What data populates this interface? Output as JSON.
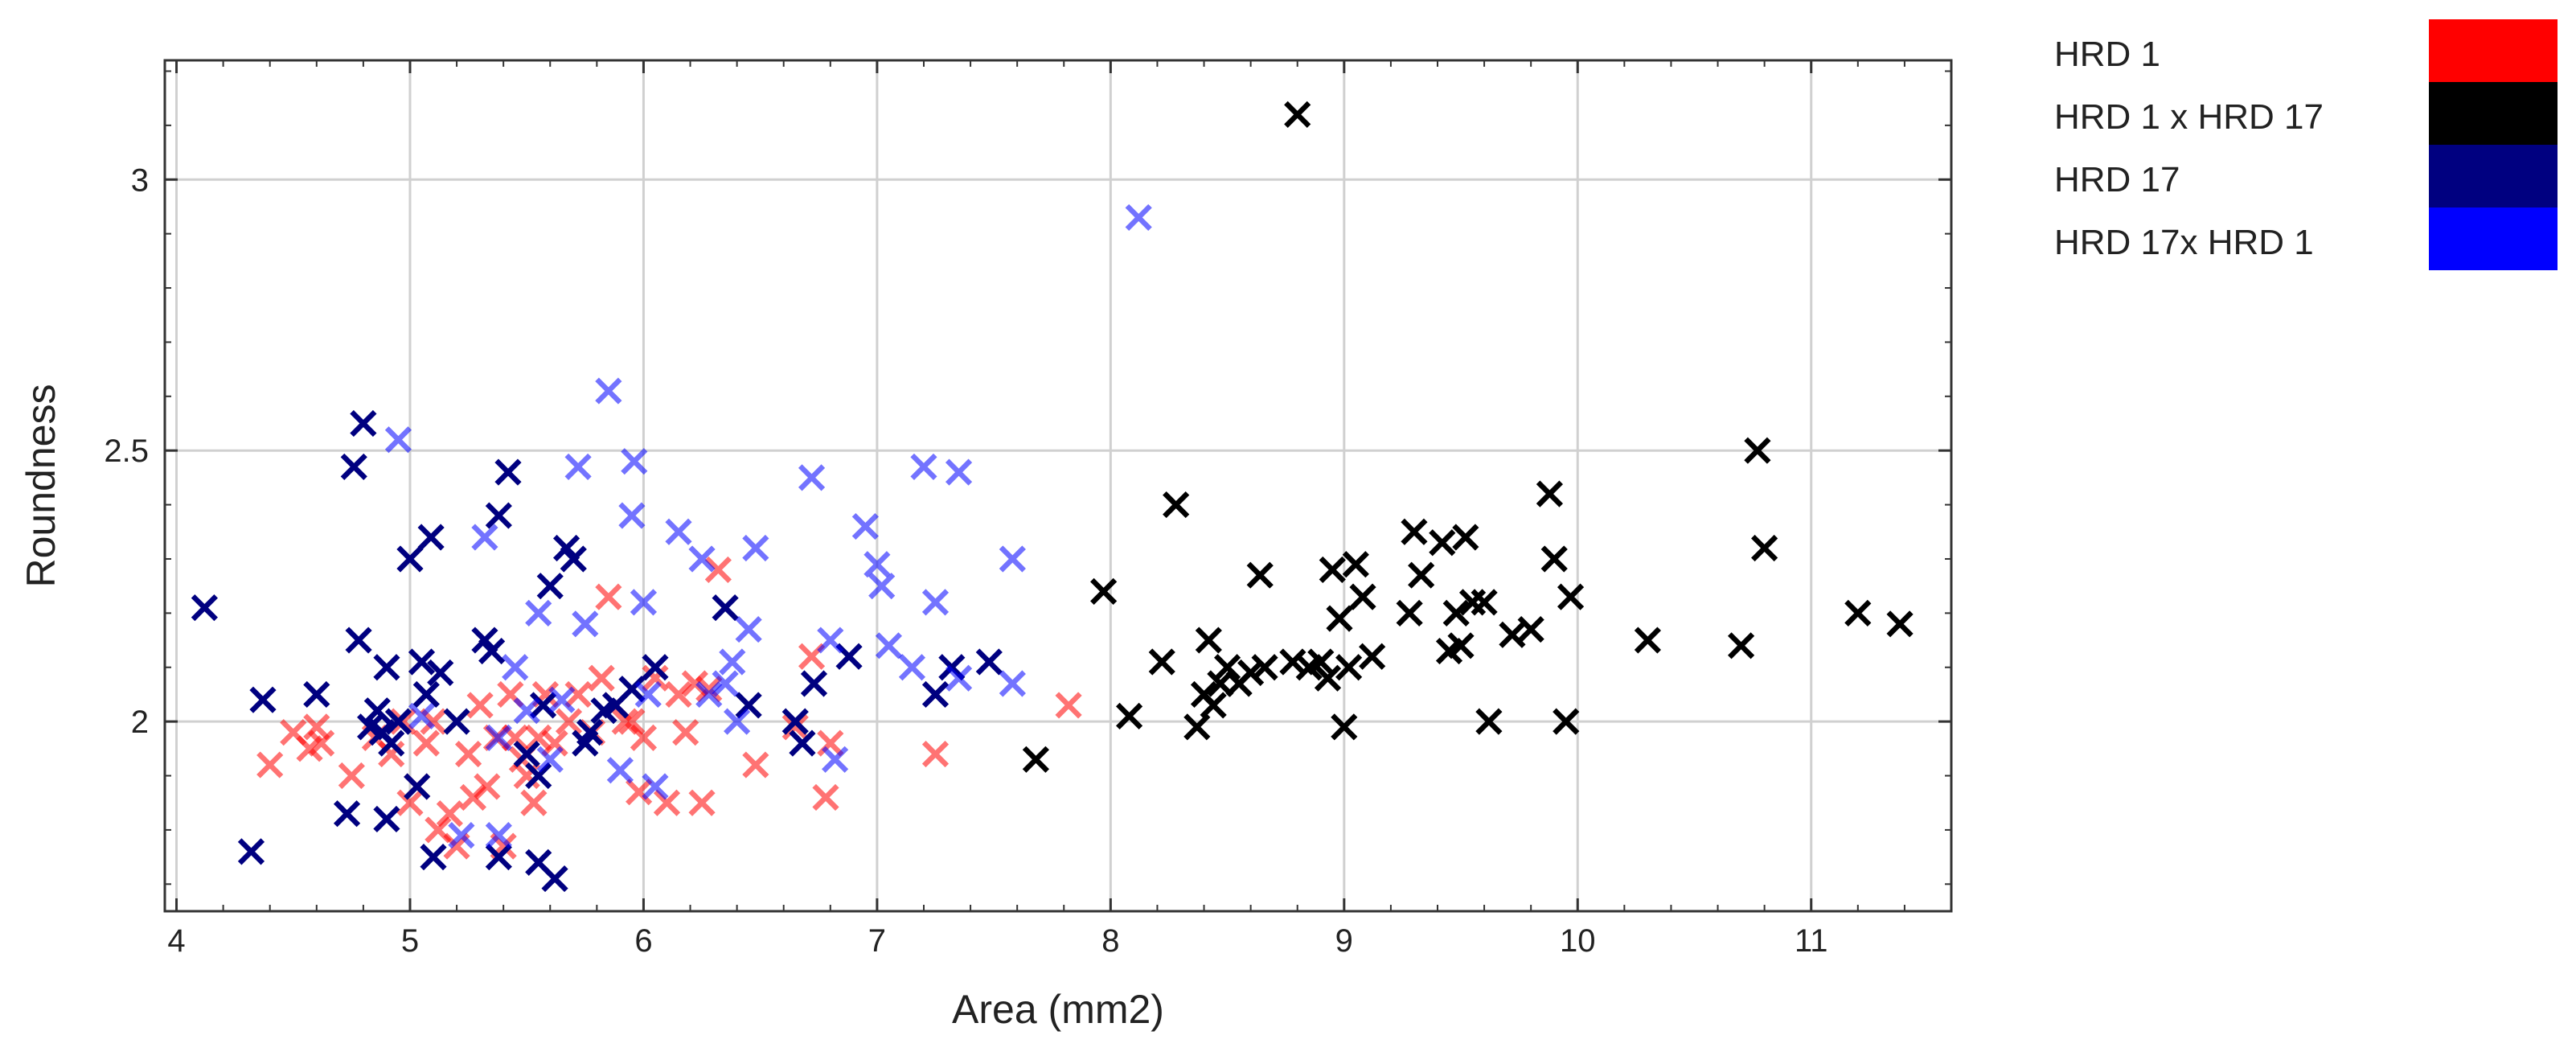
{
  "chart_data": {
    "type": "scatter",
    "xlabel": "Area (mm2)",
    "ylabel": "Roundness",
    "xlim": [
      3.95,
      11.6
    ],
    "ylim": [
      1.65,
      3.22
    ],
    "x_ticks": [
      4,
      5,
      6,
      7,
      8,
      9,
      10,
      11
    ],
    "y_ticks": [
      2,
      2.5,
      3
    ],
    "grid": true,
    "legend_position": "outside-right-top",
    "series": [
      {
        "name": "HRD 1",
        "color": "#ff0000",
        "points": [
          [
            4.4,
            1.92
          ],
          [
            4.5,
            1.98
          ],
          [
            4.57,
            1.95
          ],
          [
            4.6,
            1.99
          ],
          [
            4.62,
            1.96
          ],
          [
            4.75,
            1.9
          ],
          [
            4.85,
            1.97
          ],
          [
            4.92,
            1.94
          ],
          [
            4.97,
            2.0
          ],
          [
            5.0,
            1.85
          ],
          [
            5.03,
            1.88
          ],
          [
            5.07,
            1.96
          ],
          [
            5.1,
            2.0
          ],
          [
            5.12,
            1.8
          ],
          [
            5.17,
            1.83
          ],
          [
            5.2,
            1.77
          ],
          [
            5.25,
            1.94
          ],
          [
            5.27,
            1.86
          ],
          [
            5.3,
            2.03
          ],
          [
            5.33,
            1.88
          ],
          [
            5.37,
            1.97
          ],
          [
            5.4,
            1.77
          ],
          [
            5.43,
            2.05
          ],
          [
            5.45,
            1.97
          ],
          [
            5.48,
            1.93
          ],
          [
            5.5,
            1.9
          ],
          [
            5.53,
            1.85
          ],
          [
            5.55,
            1.97
          ],
          [
            5.58,
            2.05
          ],
          [
            5.62,
            1.96
          ],
          [
            5.68,
            2.0
          ],
          [
            5.72,
            2.05
          ],
          [
            5.78,
            1.98
          ],
          [
            5.82,
            2.08
          ],
          [
            5.85,
            2.23
          ],
          [
            5.88,
            2.03
          ],
          [
            5.92,
            2.0
          ],
          [
            5.95,
            2.0
          ],
          [
            5.98,
            1.87
          ],
          [
            6.0,
            1.97
          ],
          [
            6.05,
            2.08
          ],
          [
            6.1,
            1.85
          ],
          [
            6.15,
            2.05
          ],
          [
            6.18,
            1.98
          ],
          [
            6.22,
            2.07
          ],
          [
            6.25,
            1.85
          ],
          [
            6.28,
            2.06
          ],
          [
            6.32,
            2.28
          ],
          [
            6.48,
            1.92
          ],
          [
            6.65,
            1.99
          ],
          [
            6.72,
            2.12
          ],
          [
            6.8,
            1.96
          ],
          [
            6.78,
            1.86
          ],
          [
            7.25,
            1.94
          ],
          [
            7.82,
            2.03
          ]
        ]
      },
      {
        "name": "HRD 1 x HRD 17",
        "color": "#000000",
        "points": [
          [
            7.68,
            1.93
          ],
          [
            7.97,
            2.24
          ],
          [
            8.08,
            2.01
          ],
          [
            8.22,
            2.11
          ],
          [
            8.28,
            2.4
          ],
          [
            8.37,
            1.99
          ],
          [
            8.4,
            2.05
          ],
          [
            8.42,
            2.15
          ],
          [
            8.44,
            2.03
          ],
          [
            8.47,
            2.07
          ],
          [
            8.5,
            2.1
          ],
          [
            8.55,
            2.07
          ],
          [
            8.6,
            2.09
          ],
          [
            8.64,
            2.27
          ],
          [
            8.66,
            2.1
          ],
          [
            8.78,
            2.11
          ],
          [
            8.8,
            3.12
          ],
          [
            8.85,
            2.1
          ],
          [
            8.9,
            2.11
          ],
          [
            8.93,
            2.08
          ],
          [
            8.95,
            2.28
          ],
          [
            8.98,
            2.19
          ],
          [
            9.0,
            1.99
          ],
          [
            9.02,
            2.1
          ],
          [
            9.05,
            2.29
          ],
          [
            9.08,
            2.23
          ],
          [
            9.12,
            2.12
          ],
          [
            9.28,
            2.2
          ],
          [
            9.3,
            2.35
          ],
          [
            9.33,
            2.27
          ],
          [
            9.42,
            2.33
          ],
          [
            9.45,
            2.13
          ],
          [
            9.48,
            2.2
          ],
          [
            9.5,
            2.14
          ],
          [
            9.52,
            2.34
          ],
          [
            9.55,
            2.22
          ],
          [
            9.6,
            2.22
          ],
          [
            9.62,
            2.0
          ],
          [
            9.72,
            2.16
          ],
          [
            9.8,
            2.17
          ],
          [
            9.88,
            2.42
          ],
          [
            9.9,
            2.3
          ],
          [
            9.95,
            2.0
          ],
          [
            9.97,
            2.23
          ],
          [
            10.3,
            2.15
          ],
          [
            10.7,
            2.14
          ],
          [
            10.77,
            2.5
          ],
          [
            10.8,
            2.32
          ],
          [
            11.2,
            2.2
          ],
          [
            11.38,
            2.18
          ]
        ]
      },
      {
        "name": "HRD 17",
        "color": "#000080",
        "points": [
          [
            4.12,
            2.21
          ],
          [
            4.32,
            1.76
          ],
          [
            4.37,
            2.04
          ],
          [
            4.6,
            2.05
          ],
          [
            4.73,
            1.83
          ],
          [
            4.76,
            2.47
          ],
          [
            4.78,
            2.15
          ],
          [
            4.8,
            2.55
          ],
          [
            4.83,
            1.99
          ],
          [
            4.86,
            2.02
          ],
          [
            4.88,
            1.98
          ],
          [
            4.9,
            2.1
          ],
          [
            4.9,
            1.82
          ],
          [
            4.92,
            1.96
          ],
          [
            4.95,
            2.0
          ],
          [
            5.0,
            2.3
          ],
          [
            5.03,
            1.88
          ],
          [
            5.05,
            2.11
          ],
          [
            5.07,
            2.05
          ],
          [
            5.09,
            2.34
          ],
          [
            5.1,
            1.75
          ],
          [
            5.13,
            2.09
          ],
          [
            5.2,
            2.0
          ],
          [
            5.32,
            2.15
          ],
          [
            5.35,
            2.13
          ],
          [
            5.38,
            1.75
          ],
          [
            5.38,
            2.38
          ],
          [
            5.42,
            2.46
          ],
          [
            5.5,
            1.94
          ],
          [
            5.55,
            1.9
          ],
          [
            5.55,
            1.74
          ],
          [
            5.57,
            2.03
          ],
          [
            5.6,
            2.25
          ],
          [
            5.62,
            1.71
          ],
          [
            5.67,
            2.32
          ],
          [
            5.7,
            2.3
          ],
          [
            5.75,
            1.96
          ],
          [
            5.77,
            1.98
          ],
          [
            5.83,
            2.02
          ],
          [
            5.88,
            2.03
          ],
          [
            5.95,
            2.06
          ],
          [
            6.05,
            2.1
          ],
          [
            6.35,
            2.21
          ],
          [
            6.45,
            2.03
          ],
          [
            6.65,
            2.0
          ],
          [
            6.68,
            1.96
          ],
          [
            6.73,
            2.07
          ],
          [
            6.88,
            2.12
          ],
          [
            7.25,
            2.05
          ],
          [
            7.32,
            2.1
          ],
          [
            7.48,
            2.11
          ]
        ]
      },
      {
        "name": "HRD 17x HRD 1",
        "color": "#0000ff",
        "points": [
          [
            4.95,
            2.52
          ],
          [
            5.05,
            2.01
          ],
          [
            5.22,
            1.79
          ],
          [
            5.32,
            2.34
          ],
          [
            5.38,
            1.97
          ],
          [
            5.38,
            1.79
          ],
          [
            5.45,
            2.1
          ],
          [
            5.5,
            2.02
          ],
          [
            5.55,
            2.2
          ],
          [
            5.6,
            1.93
          ],
          [
            5.65,
            2.04
          ],
          [
            5.72,
            2.47
          ],
          [
            5.75,
            2.18
          ],
          [
            5.85,
            2.61
          ],
          [
            5.9,
            1.91
          ],
          [
            5.95,
            2.38
          ],
          [
            5.96,
            2.48
          ],
          [
            6.0,
            2.22
          ],
          [
            6.02,
            2.05
          ],
          [
            6.05,
            1.88
          ],
          [
            6.15,
            2.35
          ],
          [
            6.25,
            2.3
          ],
          [
            6.28,
            2.05
          ],
          [
            6.35,
            2.07
          ],
          [
            6.38,
            2.11
          ],
          [
            6.4,
            2.0
          ],
          [
            6.45,
            2.17
          ],
          [
            6.48,
            2.32
          ],
          [
            6.72,
            2.45
          ],
          [
            6.8,
            2.15
          ],
          [
            6.82,
            1.93
          ],
          [
            6.95,
            2.36
          ],
          [
            7.0,
            2.29
          ],
          [
            7.02,
            2.25
          ],
          [
            7.05,
            2.14
          ],
          [
            7.15,
            2.1
          ],
          [
            7.2,
            2.47
          ],
          [
            7.25,
            2.22
          ],
          [
            7.35,
            2.46
          ],
          [
            7.35,
            2.08
          ],
          [
            7.58,
            2.3
          ],
          [
            7.58,
            2.07
          ],
          [
            8.12,
            2.93
          ]
        ]
      }
    ]
  }
}
